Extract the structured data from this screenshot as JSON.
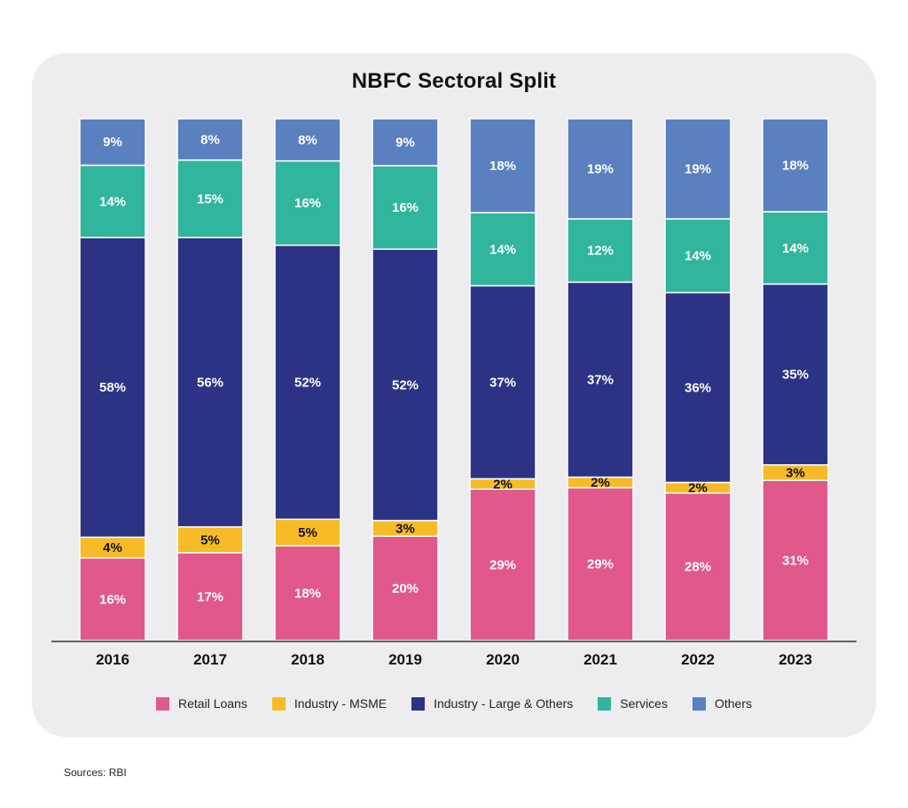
{
  "colors": {
    "retail": "#e0598a",
    "msme": "#f6bb26",
    "large": "#2d3384",
    "services": "#31b59c",
    "others": "#5a80c0",
    "axis": "#333333"
  },
  "chart_data": {
    "type": "bar",
    "stacked": true,
    "title": "NBFC Sectoral Split",
    "categories": [
      "2016",
      "2017",
      "2018",
      "2019",
      "2020",
      "2021",
      "2022",
      "2023"
    ],
    "series": [
      {
        "name": "Retail Loans",
        "key": "retail",
        "values": [
          16,
          17,
          18,
          20,
          29,
          29,
          28,
          31
        ]
      },
      {
        "name": "Industry - MSME",
        "key": "msme",
        "values": [
          4,
          5,
          5,
          3,
          2,
          2,
          2,
          3
        ]
      },
      {
        "name": "Industry - Large & Others",
        "key": "large",
        "values": [
          58,
          56,
          52,
          52,
          37,
          37,
          36,
          35
        ]
      },
      {
        "name": "Services",
        "key": "services",
        "values": [
          14,
          15,
          16,
          16,
          14,
          12,
          14,
          14
        ]
      },
      {
        "name": "Others",
        "key": "others",
        "values": [
          9,
          8,
          8,
          9,
          18,
          19,
          19,
          18
        ]
      }
    ],
    "value_suffix": "%",
    "legend_position": "bottom"
  },
  "legend": [
    {
      "label": "Retail Loans",
      "key": "retail"
    },
    {
      "label": "Industry - MSME",
      "key": "msme"
    },
    {
      "label": "Industry - Large & Others",
      "key": "large"
    },
    {
      "label": "Services",
      "key": "services"
    },
    {
      "label": "Others",
      "key": "others"
    }
  ],
  "footer": {
    "source": "Sources: RBI"
  }
}
